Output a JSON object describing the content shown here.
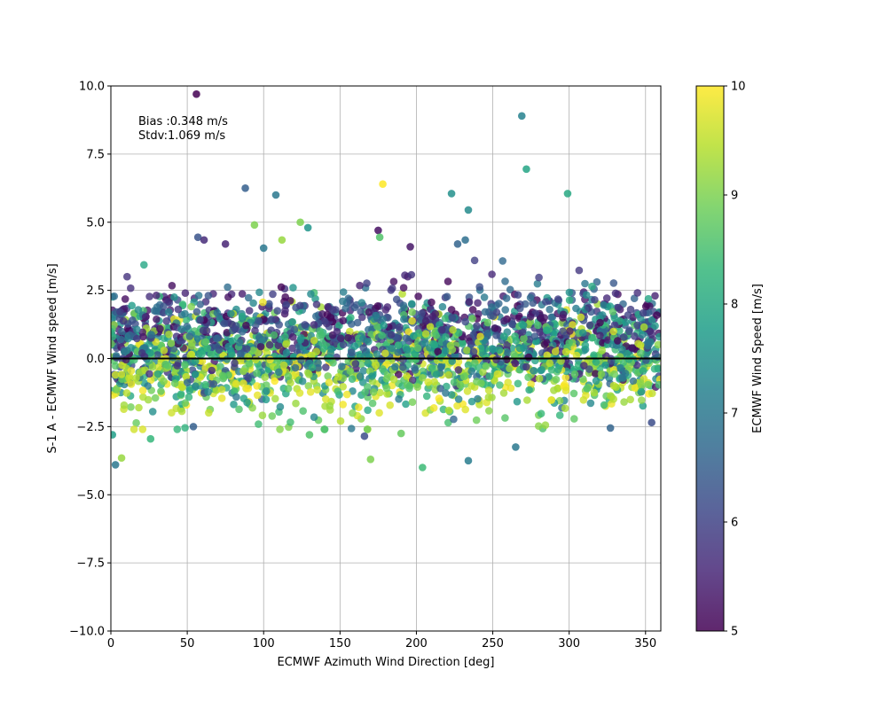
{
  "chart_data": {
    "type": "scatter",
    "xlabel": "ECMWF Azimuth Wind Direction [deg]",
    "ylabel": "S-1 A - ECMWF Wind speed [m/s]",
    "xlim": [
      0,
      360
    ],
    "ylim": [
      -10,
      10
    ],
    "x_ticks": [
      0,
      50,
      100,
      150,
      200,
      250,
      300,
      350
    ],
    "y_ticks": [
      -10.0,
      -7.5,
      -5.0,
      -2.5,
      0.0,
      2.5,
      5.0,
      7.5,
      10.0
    ],
    "x_tick_labels": [
      "0",
      "50",
      "100",
      "150",
      "200",
      "250",
      "300",
      "350"
    ],
    "y_tick_labels": [
      "−10.0",
      "−7.5",
      "−5.0",
      "−2.5",
      "0.0",
      "2.5",
      "5.0",
      "7.5",
      "10.0"
    ],
    "grid": true,
    "reference_line_y": 0,
    "annotations": [
      "Bias :0.348 m/s",
      "Stdv:1.069 m/s"
    ],
    "colorbar": {
      "label": "ECMWF Wind Speed [m/s]",
      "range": [
        5,
        10
      ],
      "ticks": [
        5,
        6,
        7,
        8,
        9,
        10
      ],
      "tick_labels": [
        "5",
        "6",
        "7",
        "8",
        "9",
        "10"
      ],
      "colormap": "viridis",
      "colors": [
        "#440154",
        "#482878",
        "#3e4989",
        "#31688e",
        "#26828e",
        "#1f9e89",
        "#35b779",
        "#6ece58",
        "#b5de2b",
        "#fde725"
      ]
    },
    "point_count": 2600,
    "point_mean_y": 0.348,
    "point_std_y": 1.069,
    "highlighted_points": [
      {
        "x": 56,
        "y": 9.7,
        "c": 5.0
      },
      {
        "x": 269,
        "y": 8.9,
        "c": 7.2
      },
      {
        "x": 272,
        "y": 6.95,
        "c": 7.9
      },
      {
        "x": 178,
        "y": 6.4,
        "c": 10.0
      },
      {
        "x": 88,
        "y": 6.25,
        "c": 6.5
      },
      {
        "x": 108,
        "y": 6.0,
        "c": 7.0
      },
      {
        "x": 223,
        "y": 6.05,
        "c": 7.5
      },
      {
        "x": 299,
        "y": 6.05,
        "c": 8.0
      },
      {
        "x": 234,
        "y": 5.45,
        "c": 7.4
      },
      {
        "x": 124,
        "y": 5.0,
        "c": 9.0
      },
      {
        "x": 94,
        "y": 4.9,
        "c": 9.0
      },
      {
        "x": 129,
        "y": 4.8,
        "c": 7.6
      },
      {
        "x": 175,
        "y": 4.7,
        "c": 5.2
      },
      {
        "x": 57,
        "y": 4.45,
        "c": 6.3
      },
      {
        "x": 61,
        "y": 4.35,
        "c": 5.6
      },
      {
        "x": 112,
        "y": 4.35,
        "c": 9.2
      },
      {
        "x": 176,
        "y": 4.45,
        "c": 8.6
      },
      {
        "x": 196,
        "y": 4.1,
        "c": 5.3
      },
      {
        "x": 75,
        "y": 4.2,
        "c": 5.5
      },
      {
        "x": 100,
        "y": 4.05,
        "c": 7.0
      },
      {
        "x": 232,
        "y": 4.35,
        "c": 6.8
      },
      {
        "x": 227,
        "y": 4.2,
        "c": 6.6
      },
      {
        "x": 3,
        "y": -3.9,
        "c": 7.0
      },
      {
        "x": 7,
        "y": -3.65,
        "c": 9.2
      },
      {
        "x": 170,
        "y": -3.7,
        "c": 9.0
      },
      {
        "x": 204,
        "y": -4.0,
        "c": 8.4
      },
      {
        "x": 234,
        "y": -3.75,
        "c": 7.1
      },
      {
        "x": 265,
        "y": -3.25,
        "c": 7.0
      },
      {
        "x": 327,
        "y": -2.55,
        "c": 6.6
      },
      {
        "x": 1,
        "y": -2.8,
        "c": 7.8
      },
      {
        "x": 26,
        "y": -2.95,
        "c": 8.3
      },
      {
        "x": 54,
        "y": -2.5,
        "c": 6.5
      },
      {
        "x": 130,
        "y": -2.8,
        "c": 8.6
      },
      {
        "x": 166,
        "y": -2.85,
        "c": 6.2
      },
      {
        "x": 190,
        "y": -2.75,
        "c": 8.8
      },
      {
        "x": 354,
        "y": -2.35,
        "c": 6.2
      }
    ]
  }
}
